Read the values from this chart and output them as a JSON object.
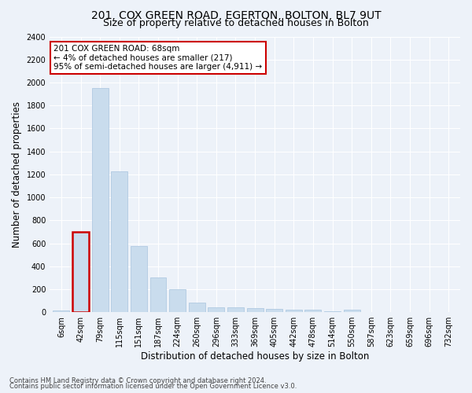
{
  "title": "201, COX GREEN ROAD, EGERTON, BOLTON, BL7 9UT",
  "subtitle": "Size of property relative to detached houses in Bolton",
  "xlabel": "Distribution of detached houses by size in Bolton",
  "ylabel": "Number of detached properties",
  "bar_labels": [
    "6sqm",
    "42sqm",
    "79sqm",
    "115sqm",
    "151sqm",
    "187sqm",
    "224sqm",
    "260sqm",
    "296sqm",
    "333sqm",
    "369sqm",
    "405sqm",
    "442sqm",
    "478sqm",
    "514sqm",
    "550sqm",
    "587sqm",
    "623sqm",
    "659sqm",
    "696sqm",
    "732sqm"
  ],
  "bar_values": [
    15,
    700,
    1950,
    1225,
    575,
    305,
    200,
    85,
    45,
    40,
    35,
    30,
    20,
    20,
    5,
    20,
    0,
    0,
    0,
    0,
    0
  ],
  "bar_color": "#c9dced",
  "bar_edge_color": "#a8c4de",
  "highlight_bar_index": 1,
  "highlight_bar_edge_color": "#cc0000",
  "annotation_text": "201 COX GREEN ROAD: 68sqm\n← 4% of detached houses are smaller (217)\n95% of semi-detached houses are larger (4,911) →",
  "annotation_box_color": "#ffffff",
  "annotation_box_edge_color": "#cc0000",
  "ylim": [
    0,
    2400
  ],
  "yticks": [
    0,
    200,
    400,
    600,
    800,
    1000,
    1200,
    1400,
    1600,
    1800,
    2000,
    2200,
    2400
  ],
  "footnote1": "Contains HM Land Registry data © Crown copyright and database right 2024.",
  "footnote2": "Contains public sector information licensed under the Open Government Licence v3.0.",
  "background_color": "#edf2f9",
  "grid_color": "#ffffff",
  "title_fontsize": 10,
  "subtitle_fontsize": 9,
  "axis_label_fontsize": 8.5,
  "tick_fontsize": 7,
  "annotation_fontsize": 7.5,
  "footnote_fontsize": 6
}
